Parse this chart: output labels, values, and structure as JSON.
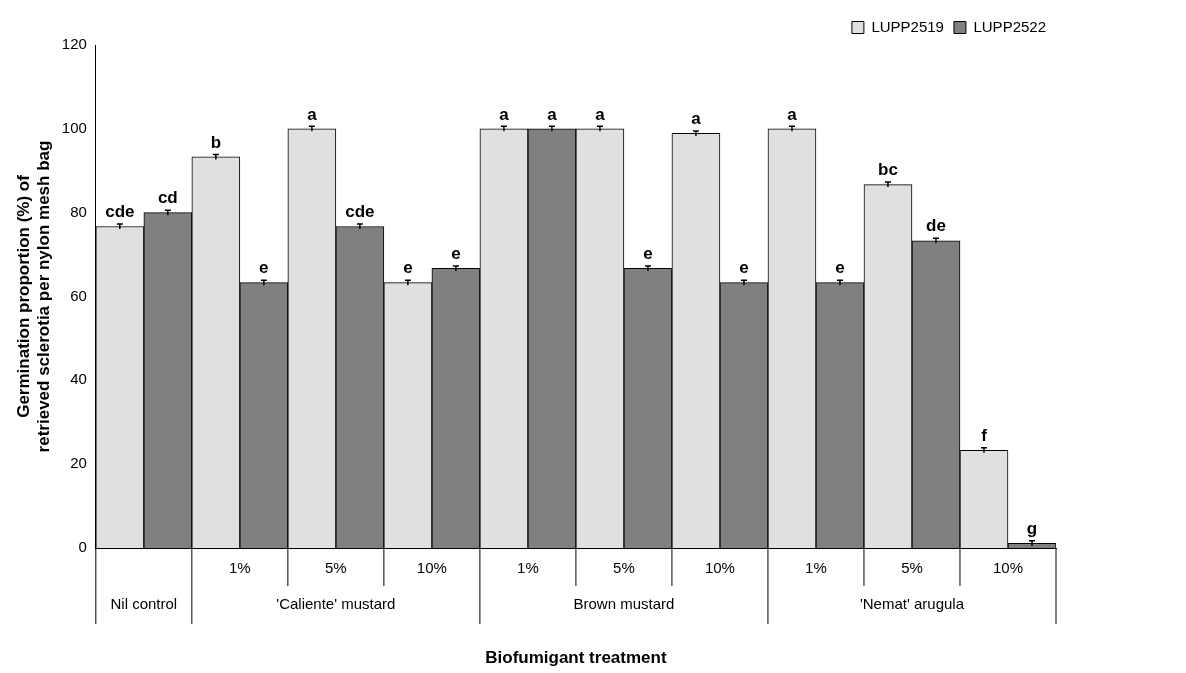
{
  "chart_data": {
    "type": "bar",
    "xlabel": "Biofumigant treatment",
    "ylabel": "Germination proportion (%) of retrieved sclerotia per nylon mesh bag",
    "categories": [
      null,
      "1%",
      "5%",
      "10%",
      "1%",
      "5%",
      "10%",
      "1%",
      "5%",
      "10%"
    ],
    "annotations": [
      "Nil control",
      "'Caliente' mustard",
      "Brown mustard",
      "'Nemat' arugula"
    ],
    "series": [
      {
        "name": "LUPP2519",
        "color": "#e0e0e0",
        "values": [
          76.7,
          93.3,
          100,
          63.3,
          100,
          100,
          98.9,
          100,
          86.7,
          23.3
        ],
        "errors": [
          0.6,
          0.6,
          0.6,
          0.6,
          0.6,
          0.6,
          0.6,
          0.6,
          0.6,
          0.6
        ],
        "value_labels": [
          "cde",
          "b",
          "a",
          "e",
          "a",
          "a",
          "a",
          "a",
          "bc",
          "f"
        ]
      },
      {
        "name": "LUPP2522",
        "color": "#808080",
        "values": [
          80,
          63.3,
          76.7,
          66.7,
          100,
          66.7,
          63.3,
          63.3,
          73.3,
          1.1
        ],
        "errors": [
          0.6,
          0.6,
          0.6,
          0.6,
          0.6,
          0.6,
          0.6,
          0.6,
          0.6,
          0.6
        ],
        "value_labels": [
          "cd",
          "e",
          "cde",
          "e",
          "a",
          "e",
          "e",
          "e",
          "de",
          "g"
        ]
      }
    ],
    "ylim": [
      0,
      120
    ],
    "yticks": [
      0,
      20,
      40,
      60,
      80,
      100,
      120
    ],
    "grid": false,
    "legend": "top right"
  }
}
